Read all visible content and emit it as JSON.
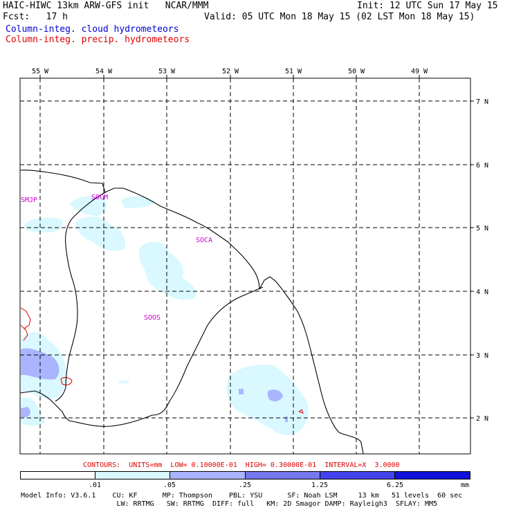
{
  "header": {
    "left_line1": "HAIC-HIWC 13km ARW-GFS init   NCAR/MMM",
    "left_line2": "Fcst:   17 h",
    "right_line1": "Init: 12 UTC Sun 17 May 15",
    "right_line2": "Valid: 05 UTC Mon 18 May 15 (02 LST Mon 18 May 15)",
    "field1": "Column-integ. cloud hydrometeors",
    "field2": "Column-integ. precip. hydrometeors"
  },
  "longitude_labels": [
    "55 W",
    "54 W",
    "53 W",
    "52 W",
    "51 W",
    "50 W",
    "49 W"
  ],
  "latitude_labels": [
    "7 N",
    "6 N",
    "5 N",
    "4 N",
    "3 N",
    "2 N"
  ],
  "stations": [
    "SMJP",
    "SOCM",
    "SOCA",
    "SOOS"
  ],
  "contours_text": "CONTOURS:  UNITS=mm  LOW= 0.10000E-01  HIGH= 0.30000E-01  INTERVAL=X  3.0000",
  "colorbar": {
    "ticks": [
      ".01",
      ".05",
      ".25",
      "1.25",
      "6.25"
    ],
    "units": "mm",
    "colors": [
      "#ffffff",
      "#d9f8ff",
      "#aab4ff",
      "#7777ee",
      "#4444ee",
      "#1111dd"
    ]
  },
  "footer": {
    "line1": "Model Info: V3.6.1    CU: KF      MP: Thompson    PBL: YSU      SF: Noah LSM     13 km   51 levels  60 sec",
    "line2": "                       LW: RRTMG   SW: RRTMG  DIFF: full   KM: 2D Smagor DAMP: Rayleigh3  SFLAY: MM5"
  },
  "colors": {
    "cloud_fill": "#d9f8ff",
    "precip_fill": "#aab4ff",
    "precip_fill_dark": "#7777ee",
    "precip_contour": "#dd0000",
    "station_label": "#cc00cc",
    "title_blue": "#0000cc",
    "title_red": "#dd0000"
  }
}
